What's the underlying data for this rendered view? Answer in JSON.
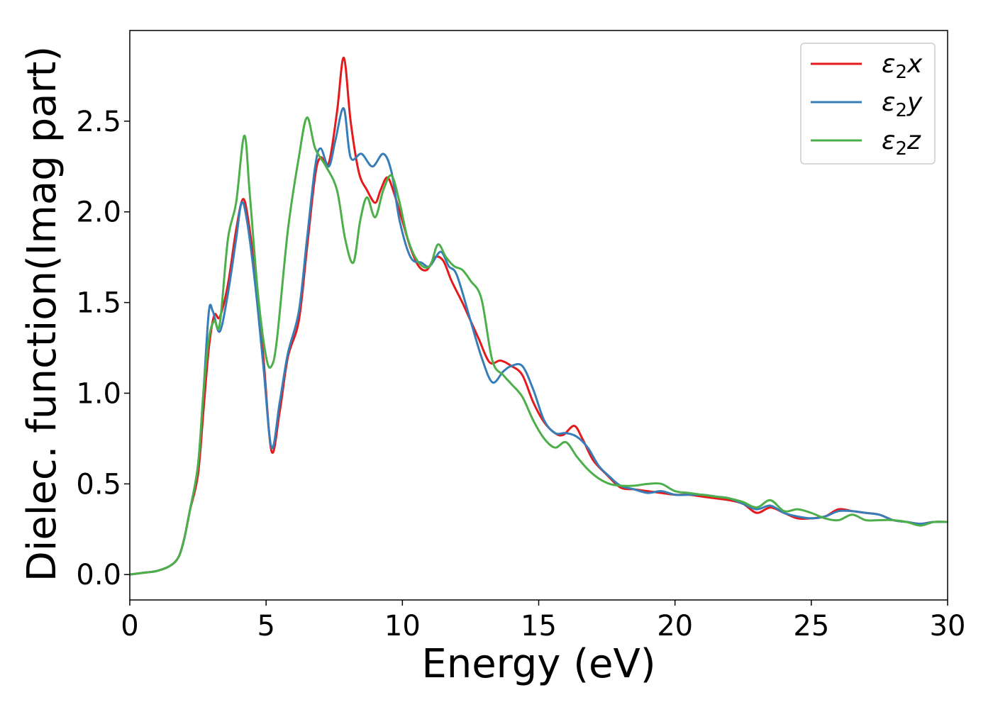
{
  "chart_data": {
    "type": "line",
    "title": "",
    "xlabel": "Energy (eV)",
    "ylabel": "Dielec. function(Imag part)",
    "xlim": [
      0,
      30
    ],
    "ylim": [
      -0.14,
      3.0
    ],
    "xticks": [
      0,
      5,
      10,
      15,
      20,
      25,
      30
    ],
    "xtick_labels": [
      "0",
      "5",
      "10",
      "15",
      "20",
      "25",
      "30"
    ],
    "yticks": [
      0.0,
      0.5,
      1.0,
      1.5,
      2.0,
      2.5
    ],
    "ytick_labels": [
      "0.0",
      "0.5",
      "1.0",
      "1.5",
      "2.0",
      "2.5"
    ],
    "grid": false,
    "legend_position": "top-right",
    "series": [
      {
        "name": "ε₂x",
        "legend": {
          "base": "ε",
          "sub": "2",
          "var": "x"
        },
        "color": "#e41a1c",
        "points": [
          [
            0,
            0.0
          ],
          [
            0.5,
            0.01
          ],
          [
            1.0,
            0.02
          ],
          [
            1.5,
            0.05
          ],
          [
            1.8,
            0.1
          ],
          [
            2.0,
            0.2
          ],
          [
            2.2,
            0.35
          ],
          [
            2.5,
            0.55
          ],
          [
            2.7,
            0.9
          ],
          [
            2.9,
            1.25
          ],
          [
            3.1,
            1.43
          ],
          [
            3.3,
            1.42
          ],
          [
            3.6,
            1.6
          ],
          [
            3.9,
            1.9
          ],
          [
            4.15,
            2.07
          ],
          [
            4.35,
            1.95
          ],
          [
            4.6,
            1.65
          ],
          [
            4.9,
            1.2
          ],
          [
            5.2,
            0.68
          ],
          [
            5.5,
            0.9
          ],
          [
            5.8,
            1.2
          ],
          [
            6.2,
            1.4
          ],
          [
            6.5,
            1.8
          ],
          [
            6.8,
            2.2
          ],
          [
            7.0,
            2.3
          ],
          [
            7.3,
            2.27
          ],
          [
            7.6,
            2.55
          ],
          [
            7.85,
            2.85
          ],
          [
            8.1,
            2.5
          ],
          [
            8.4,
            2.22
          ],
          [
            8.7,
            2.12
          ],
          [
            9.0,
            2.05
          ],
          [
            9.2,
            2.12
          ],
          [
            9.45,
            2.19
          ],
          [
            9.7,
            2.1
          ],
          [
            10.0,
            1.95
          ],
          [
            10.3,
            1.8
          ],
          [
            10.6,
            1.7
          ],
          [
            10.9,
            1.68
          ],
          [
            11.2,
            1.75
          ],
          [
            11.5,
            1.73
          ],
          [
            11.8,
            1.62
          ],
          [
            12.2,
            1.5
          ],
          [
            12.5,
            1.4
          ],
          [
            12.8,
            1.3
          ],
          [
            13.2,
            1.17
          ],
          [
            13.6,
            1.18
          ],
          [
            14.0,
            1.15
          ],
          [
            14.4,
            1.1
          ],
          [
            14.8,
            0.95
          ],
          [
            15.2,
            0.84
          ],
          [
            15.6,
            0.78
          ],
          [
            15.9,
            0.77
          ],
          [
            16.3,
            0.82
          ],
          [
            16.6,
            0.75
          ],
          [
            17.0,
            0.63
          ],
          [
            17.5,
            0.55
          ],
          [
            18.0,
            0.48
          ],
          [
            18.5,
            0.47
          ],
          [
            19.0,
            0.46
          ],
          [
            19.5,
            0.45
          ],
          [
            20.0,
            0.44
          ],
          [
            20.5,
            0.44
          ],
          [
            21.0,
            0.43
          ],
          [
            21.5,
            0.42
          ],
          [
            22.0,
            0.41
          ],
          [
            22.5,
            0.39
          ],
          [
            23.0,
            0.34
          ],
          [
            23.5,
            0.37
          ],
          [
            24.0,
            0.34
          ],
          [
            24.5,
            0.31
          ],
          [
            25.0,
            0.31
          ],
          [
            25.5,
            0.32
          ],
          [
            26.0,
            0.36
          ],
          [
            26.5,
            0.35
          ],
          [
            27.0,
            0.34
          ],
          [
            27.5,
            0.33
          ],
          [
            28.0,
            0.3
          ],
          [
            28.5,
            0.29
          ],
          [
            29.0,
            0.28
          ],
          [
            29.5,
            0.29
          ],
          [
            30.0,
            0.29
          ]
        ]
      },
      {
        "name": "ε₂y",
        "legend": {
          "base": "ε",
          "sub": "2",
          "var": "y"
        },
        "color": "#377eb8",
        "points": [
          [
            0,
            0.0
          ],
          [
            0.5,
            0.01
          ],
          [
            1.0,
            0.02
          ],
          [
            1.5,
            0.05
          ],
          [
            1.8,
            0.1
          ],
          [
            2.0,
            0.2
          ],
          [
            2.2,
            0.35
          ],
          [
            2.5,
            0.6
          ],
          [
            2.7,
            1.0
          ],
          [
            2.9,
            1.45
          ],
          [
            3.05,
            1.45
          ],
          [
            3.3,
            1.34
          ],
          [
            3.6,
            1.55
          ],
          [
            3.9,
            1.85
          ],
          [
            4.1,
            2.05
          ],
          [
            4.3,
            1.95
          ],
          [
            4.6,
            1.6
          ],
          [
            4.9,
            1.15
          ],
          [
            5.2,
            0.7
          ],
          [
            5.5,
            0.95
          ],
          [
            5.8,
            1.22
          ],
          [
            6.2,
            1.45
          ],
          [
            6.5,
            1.85
          ],
          [
            6.8,
            2.25
          ],
          [
            7.0,
            2.35
          ],
          [
            7.3,
            2.25
          ],
          [
            7.55,
            2.4
          ],
          [
            7.85,
            2.57
          ],
          [
            8.1,
            2.3
          ],
          [
            8.5,
            2.32
          ],
          [
            8.9,
            2.25
          ],
          [
            9.3,
            2.32
          ],
          [
            9.6,
            2.22
          ],
          [
            9.9,
            1.95
          ],
          [
            10.3,
            1.75
          ],
          [
            10.7,
            1.72
          ],
          [
            11.0,
            1.7
          ],
          [
            11.4,
            1.78
          ],
          [
            11.7,
            1.7
          ],
          [
            12.0,
            1.65
          ],
          [
            12.5,
            1.4
          ],
          [
            12.9,
            1.2
          ],
          [
            13.3,
            1.06
          ],
          [
            13.7,
            1.12
          ],
          [
            14.0,
            1.15
          ],
          [
            14.4,
            1.15
          ],
          [
            14.8,
            1.02
          ],
          [
            15.2,
            0.85
          ],
          [
            15.6,
            0.78
          ],
          [
            16.0,
            0.78
          ],
          [
            16.4,
            0.76
          ],
          [
            16.8,
            0.7
          ],
          [
            17.2,
            0.6
          ],
          [
            17.6,
            0.54
          ],
          [
            18.0,
            0.49
          ],
          [
            18.5,
            0.47
          ],
          [
            19.0,
            0.45
          ],
          [
            19.5,
            0.46
          ],
          [
            20.0,
            0.44
          ],
          [
            20.5,
            0.44
          ],
          [
            21.0,
            0.44
          ],
          [
            21.5,
            0.43
          ],
          [
            22.0,
            0.42
          ],
          [
            22.5,
            0.39
          ],
          [
            23.0,
            0.36
          ],
          [
            23.5,
            0.38
          ],
          [
            24.0,
            0.34
          ],
          [
            24.5,
            0.32
          ],
          [
            25.0,
            0.31
          ],
          [
            25.5,
            0.32
          ],
          [
            26.0,
            0.35
          ],
          [
            26.5,
            0.35
          ],
          [
            27.0,
            0.34
          ],
          [
            27.5,
            0.33
          ],
          [
            28.0,
            0.3
          ],
          [
            28.5,
            0.29
          ],
          [
            29.0,
            0.28
          ],
          [
            29.5,
            0.29
          ],
          [
            30.0,
            0.29
          ]
        ]
      },
      {
        "name": "ε₂z",
        "legend": {
          "base": "ε",
          "sub": "2",
          "var": "z"
        },
        "color": "#4daf4a",
        "points": [
          [
            0,
            0.0
          ],
          [
            0.5,
            0.01
          ],
          [
            1.0,
            0.02
          ],
          [
            1.5,
            0.05
          ],
          [
            1.8,
            0.1
          ],
          [
            2.0,
            0.2
          ],
          [
            2.2,
            0.35
          ],
          [
            2.5,
            0.6
          ],
          [
            2.7,
            1.0
          ],
          [
            2.9,
            1.3
          ],
          [
            3.1,
            1.4
          ],
          [
            3.3,
            1.38
          ],
          [
            3.6,
            1.85
          ],
          [
            3.9,
            2.05
          ],
          [
            4.2,
            2.42
          ],
          [
            4.4,
            2.1
          ],
          [
            4.7,
            1.55
          ],
          [
            5.0,
            1.2
          ],
          [
            5.2,
            1.15
          ],
          [
            5.4,
            1.3
          ],
          [
            5.8,
            1.9
          ],
          [
            6.2,
            2.3
          ],
          [
            6.5,
            2.52
          ],
          [
            6.8,
            2.35
          ],
          [
            7.2,
            2.25
          ],
          [
            7.6,
            2.12
          ],
          [
            7.9,
            1.85
          ],
          [
            8.2,
            1.72
          ],
          [
            8.45,
            1.95
          ],
          [
            8.7,
            2.08
          ],
          [
            9.0,
            1.97
          ],
          [
            9.3,
            2.12
          ],
          [
            9.6,
            2.2
          ],
          [
            9.9,
            2.05
          ],
          [
            10.2,
            1.85
          ],
          [
            10.6,
            1.72
          ],
          [
            11.0,
            1.7
          ],
          [
            11.3,
            1.82
          ],
          [
            11.6,
            1.75
          ],
          [
            11.9,
            1.7
          ],
          [
            12.2,
            1.68
          ],
          [
            12.5,
            1.62
          ],
          [
            12.9,
            1.52
          ],
          [
            13.3,
            1.18
          ],
          [
            13.7,
            1.1
          ],
          [
            14.0,
            1.05
          ],
          [
            14.4,
            0.98
          ],
          [
            14.8,
            0.85
          ],
          [
            15.2,
            0.75
          ],
          [
            15.6,
            0.7
          ],
          [
            16.0,
            0.73
          ],
          [
            16.4,
            0.65
          ],
          [
            16.8,
            0.58
          ],
          [
            17.2,
            0.53
          ],
          [
            17.6,
            0.5
          ],
          [
            18.0,
            0.49
          ],
          [
            18.5,
            0.49
          ],
          [
            19.0,
            0.5
          ],
          [
            19.5,
            0.5
          ],
          [
            20.0,
            0.46
          ],
          [
            20.5,
            0.45
          ],
          [
            21.0,
            0.44
          ],
          [
            21.5,
            0.43
          ],
          [
            22.0,
            0.42
          ],
          [
            22.5,
            0.4
          ],
          [
            23.0,
            0.37
          ],
          [
            23.5,
            0.41
          ],
          [
            24.0,
            0.35
          ],
          [
            24.5,
            0.36
          ],
          [
            25.0,
            0.34
          ],
          [
            25.5,
            0.31
          ],
          [
            26.0,
            0.3
          ],
          [
            26.5,
            0.33
          ],
          [
            27.0,
            0.3
          ],
          [
            27.5,
            0.3
          ],
          [
            28.0,
            0.3
          ],
          [
            28.5,
            0.29
          ],
          [
            29.0,
            0.27
          ],
          [
            29.5,
            0.29
          ],
          [
            30.0,
            0.29
          ]
        ]
      }
    ]
  }
}
